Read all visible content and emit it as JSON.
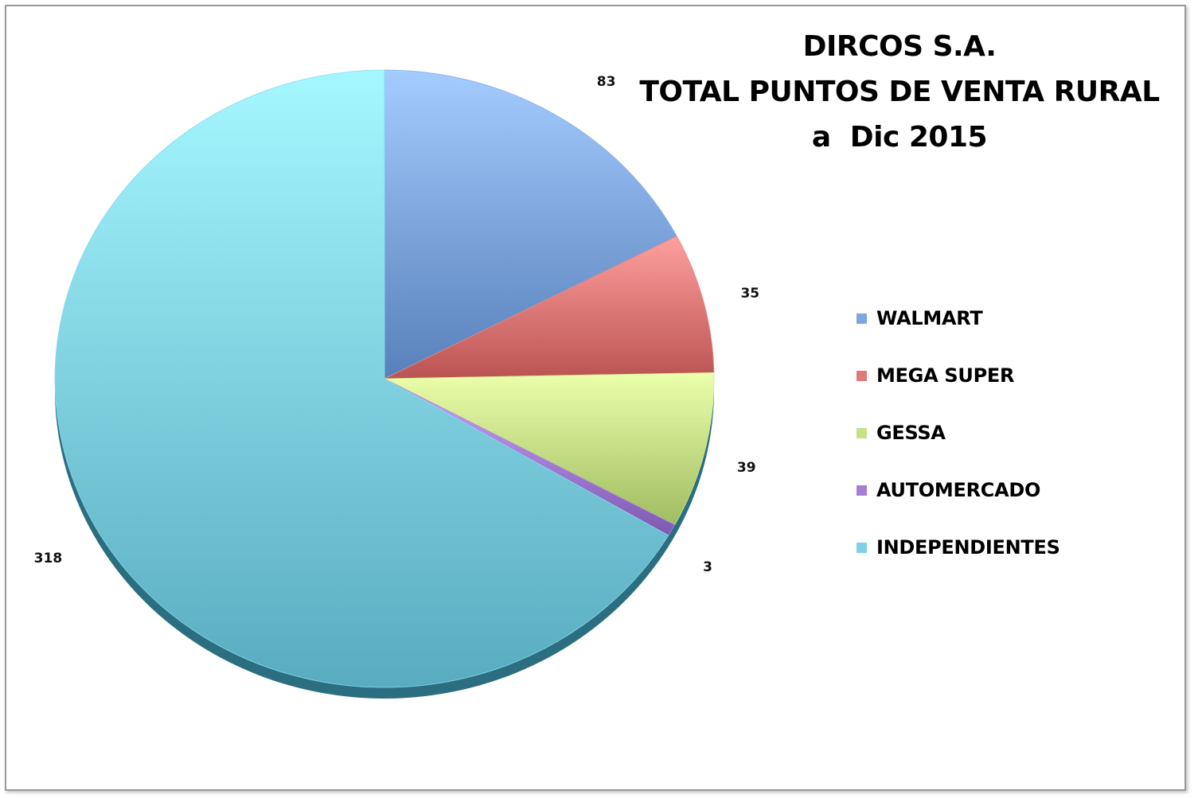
{
  "chart_data": {
    "type": "pie",
    "title": "DIRCOS S.A.",
    "subtitle_lines": [
      "TOTAL PUNTOS DE VENTA RURAL",
      "a  Dic 2015"
    ],
    "categories": [
      "WALMART",
      "MEGA SUPER",
      "GESSA",
      "AUTOMERCADO",
      "INDEPENDIENTES"
    ],
    "values": [
      83,
      35,
      39,
      3,
      318
    ],
    "colors": [
      "#7ea6e0",
      "#e07a78",
      "#c6e286",
      "#a47fd6",
      "#7fd1e6"
    ],
    "data_labels": [
      "83",
      "35",
      "39",
      "3",
      "318"
    ],
    "legend_position": "right",
    "start_angle": "12-o'clock",
    "direction": "clockwise"
  }
}
